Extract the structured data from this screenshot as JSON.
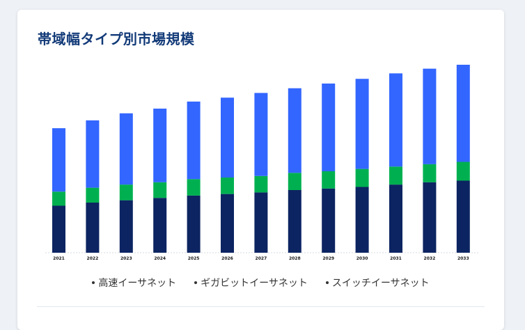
{
  "card": {
    "title": "帯域幅タイプ別市場規模"
  },
  "chart_data": {
    "type": "bar",
    "stacked": true,
    "categories": [
      "2021",
      "2022",
      "2023",
      "2024",
      "2025",
      "2026",
      "2027",
      "2028",
      "2029",
      "2030",
      "2031",
      "2032",
      "2033"
    ],
    "series": [
      {
        "name": "高速イーサネット",
        "color": "#0c2461",
        "values": [
          60,
          64,
          67,
          70,
          73,
          75,
          77,
          80,
          82,
          84,
          87,
          90,
          92
        ]
      },
      {
        "name": "ギガビットイーサネット",
        "color": "#00b050",
        "values": [
          18,
          19,
          20,
          20,
          21,
          21,
          21,
          22,
          22,
          23,
          23,
          23,
          24
        ]
      },
      {
        "name": "スイッチイーサネット",
        "color": "#3366ff",
        "values": [
          81,
          86,
          91,
          94,
          99,
          102,
          106,
          108,
          112,
          115,
          119,
          122,
          124
        ]
      }
    ],
    "ylim": [
      0,
      240
    ],
    "grid": false,
    "legend_position": "bottom"
  }
}
